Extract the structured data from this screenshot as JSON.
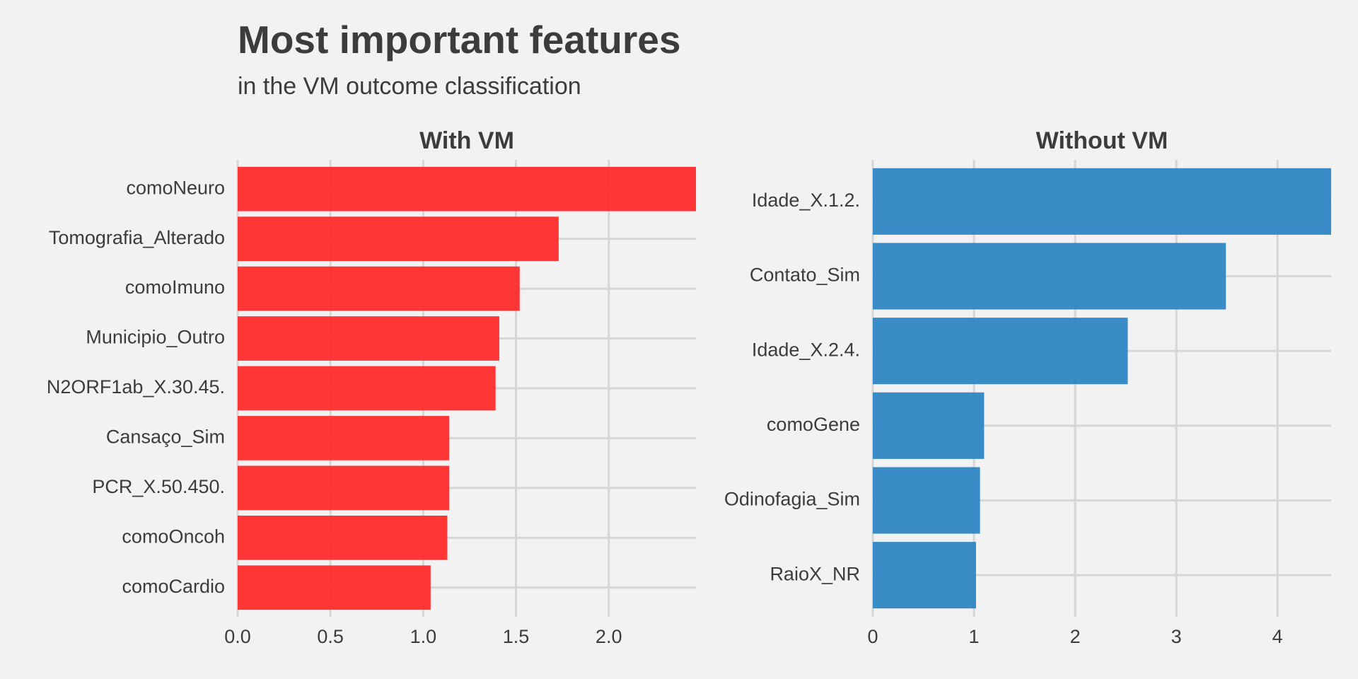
{
  "title": "Most important features",
  "subtitle": "in the VM outcome classification",
  "colors": {
    "background": "#f2f2f2",
    "grid": "#d6d6d6",
    "text": "#3c3c3c",
    "with_vm_bar": "#ff2b2b",
    "without_vm_bar": "#2f86c4"
  },
  "chart_data": [
    {
      "type": "bar",
      "orientation": "horizontal",
      "title": "With VM",
      "categories": [
        "comoNeuro",
        "Tomografia_Alterado",
        "comoImuno",
        "Municipio_Outro",
        "N2ORF1ab_X.30.45.",
        "Cansaço_Sim",
        "PCR_X.50.450.",
        "comoOncoh",
        "comoCardio"
      ],
      "values": [
        2.47,
        1.73,
        1.52,
        1.41,
        1.39,
        1.14,
        1.14,
        1.13,
        1.04
      ],
      "xlim": [
        0,
        2.47
      ],
      "xticks": [
        0.0,
        0.5,
        1.0,
        1.5,
        2.0
      ],
      "xtick_labels": [
        "0.0",
        "0.5",
        "1.0",
        "1.5",
        "2.0"
      ],
      "xlabel": "",
      "ylabel": "",
      "grid": true,
      "color": "#ff2b2b"
    },
    {
      "type": "bar",
      "orientation": "horizontal",
      "title": "Without VM",
      "categories": [
        "Idade_X.1.2.",
        "Contato_Sim",
        "Idade_X.2.4.",
        "comoGene",
        "Odinofagia_Sim",
        "RaioX_NR"
      ],
      "values": [
        4.53,
        3.49,
        2.52,
        1.1,
        1.06,
        1.02
      ],
      "xlim": [
        0,
        4.53
      ],
      "xticks": [
        0,
        1,
        2,
        3,
        4
      ],
      "xtick_labels": [
        "0",
        "1",
        "2",
        "3",
        "4"
      ],
      "xlabel": "",
      "ylabel": "",
      "grid": true,
      "color": "#2f86c4"
    }
  ]
}
